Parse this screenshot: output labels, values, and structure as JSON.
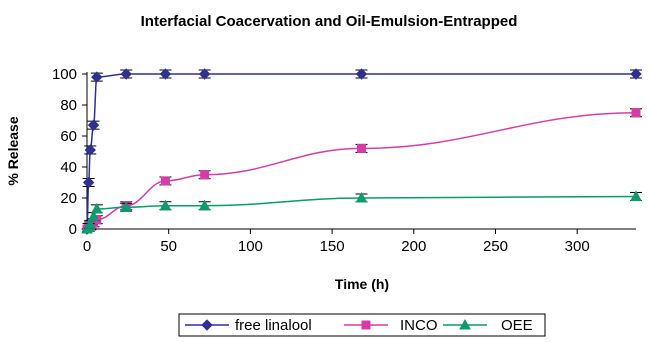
{
  "chart_data": {
    "type": "line",
    "title": "Interfacial Coacervation and Oil-Emulsion-Entrapped",
    "xlabel": "Time (h)",
    "ylabel": "% Release",
    "xlim": [
      0,
      336
    ],
    "ylim": [
      0,
      100
    ],
    "x_ticks": [
      0,
      50,
      100,
      150,
      200,
      250,
      300
    ],
    "y_ticks": [
      0,
      20,
      40,
      60,
      80,
      100
    ],
    "grid": false,
    "legend": "bottom",
    "series": [
      {
        "name": "free linalool",
        "color": "#2e3192",
        "marker": "diamond",
        "x": [
          0,
          1,
          2,
          4,
          6,
          24,
          48,
          72,
          168,
          336
        ],
        "y": [
          0,
          30,
          51,
          67,
          98,
          100,
          100,
          100,
          100,
          100
        ]
      },
      {
        "name": "INCO",
        "color": "#d63ca8",
        "marker": "square",
        "x": [
          0,
          1,
          2,
          4,
          6,
          24,
          48,
          72,
          168,
          336
        ],
        "y": [
          0,
          1,
          2,
          4,
          6,
          15,
          31,
          35,
          52,
          75
        ]
      },
      {
        "name": "OEE",
        "color": "#0a9b6e",
        "marker": "triangle",
        "x": [
          0,
          1,
          2,
          4,
          6,
          24,
          48,
          72,
          168,
          336
        ],
        "y": [
          0,
          1,
          3,
          8,
          13,
          14,
          15,
          15,
          20,
          21
        ]
      }
    ]
  }
}
